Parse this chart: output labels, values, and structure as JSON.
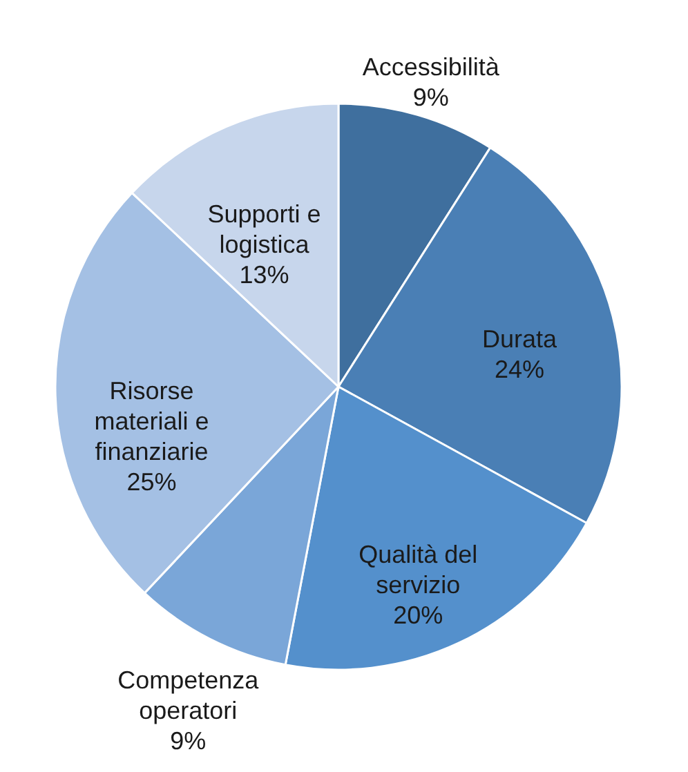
{
  "chart_data": {
    "type": "pie",
    "categories": [
      "Accessibilità",
      "Durata",
      "Qualità del servizio",
      "Competenza operatori",
      "Risorse materiali e finanziarie",
      "Supporti e logistica"
    ],
    "values": [
      9,
      24,
      20,
      9,
      25,
      13
    ],
    "value_labels": [
      "9%",
      "24%",
      "20%",
      "9%",
      "25%",
      "13%"
    ],
    "colors": [
      "#3f6f9e",
      "#4a7fb5",
      "#5490cc",
      "#7aa6d8",
      "#a4c0e4",
      "#c7d6ec"
    ]
  }
}
